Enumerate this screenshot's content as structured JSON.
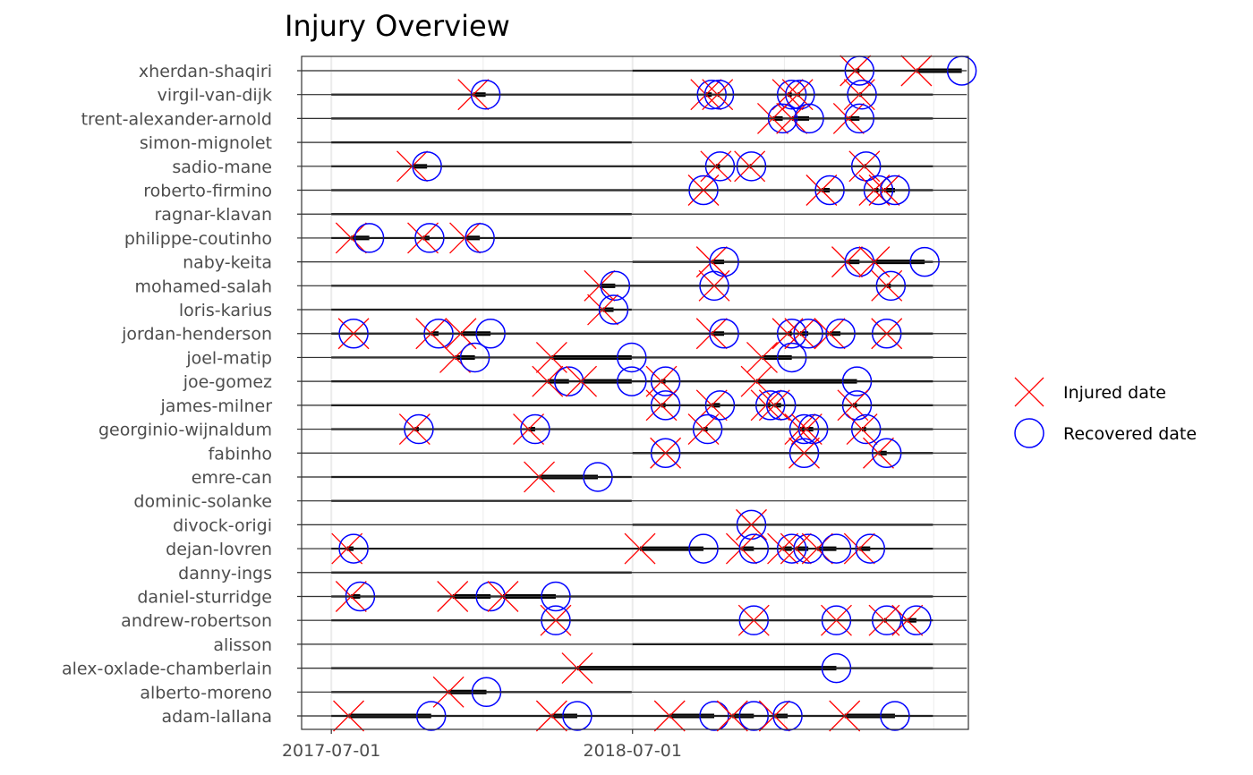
{
  "chart_data": {
    "type": "scatter",
    "title": "Injury Overview",
    "x_axis": {
      "type": "date",
      "range": [
        "2017-05-26",
        "2019-08-12"
      ],
      "ticks": [
        "2017-07-01",
        "2018-07-01"
      ],
      "minor_grid": [
        "2018-01-01",
        "2019-01-01",
        "2019-07-01"
      ]
    },
    "grid": true,
    "legend": {
      "placement": "right",
      "entries": [
        {
          "label": "Injured date",
          "shape": "cross",
          "color": "#ff0000"
        },
        {
          "label": "Recovered date",
          "shape": "circle",
          "color": "#0000ff"
        }
      ]
    },
    "players": [
      {
        "name": "xherdan-shaqiri",
        "span": [
          "2018-07-01",
          "2019-06-30"
        ],
        "injuries": [
          [
            "2019-03-28",
            "2019-04-02"
          ],
          [
            "2019-06-10",
            "2019-08-04"
          ]
        ]
      },
      {
        "name": "virgil-van-dijk",
        "span": [
          "2017-07-01",
          "2019-06-30"
        ],
        "injuries": [
          [
            "2017-12-20",
            "2018-01-04"
          ],
          [
            "2018-09-28",
            "2018-10-05"
          ],
          [
            "2018-10-12",
            "2018-10-14"
          ],
          [
            "2019-01-05",
            "2019-01-10"
          ],
          [
            "2019-01-17",
            "2019-01-20"
          ],
          [
            "2019-04-02",
            "2019-04-05"
          ]
        ]
      },
      {
        "name": "trent-alexander-arnold",
        "span": [
          "2017-07-01",
          "2019-06-30"
        ],
        "injuries": [
          [
            "2018-12-18",
            "2018-12-30"
          ],
          [
            "2019-01-10",
            "2019-01-31"
          ],
          [
            "2019-03-20",
            "2019-04-02"
          ]
        ]
      },
      {
        "name": "simon-mignolet",
        "span": [
          "2017-07-01",
          "2018-06-30"
        ],
        "injuries": []
      },
      {
        "name": "sadio-mane",
        "span": [
          "2017-07-01",
          "2019-06-30"
        ],
        "injuries": [
          [
            "2017-10-07",
            "2017-10-25"
          ],
          [
            "2018-10-10",
            "2018-10-15"
          ],
          [
            "2018-11-20",
            "2018-11-22"
          ],
          [
            "2019-04-08",
            "2019-04-10"
          ]
        ]
      },
      {
        "name": "roberto-firmino",
        "span": [
          "2017-07-01",
          "2019-06-30"
        ],
        "injuries": [
          [
            "2018-09-25",
            "2018-09-25"
          ],
          [
            "2019-02-15",
            "2019-02-25"
          ],
          [
            "2019-04-20",
            "2019-04-25"
          ],
          [
            "2019-05-02",
            "2019-05-15"
          ]
        ]
      },
      {
        "name": "ragnar-klavan",
        "span": [
          "2017-07-01",
          "2018-06-30"
        ],
        "injuries": []
      },
      {
        "name": "philippe-coutinho",
        "span": [
          "2017-07-01",
          "2018-06-30"
        ],
        "injuries": [
          [
            "2017-07-25",
            "2017-08-16"
          ],
          [
            "2017-10-20",
            "2017-10-28"
          ],
          [
            "2017-12-10",
            "2017-12-28"
          ]
        ]
      },
      {
        "name": "naby-keita",
        "span": [
          "2018-07-01",
          "2019-06-30"
        ],
        "injuries": [
          [
            "2018-10-05",
            "2018-10-20"
          ],
          [
            "2019-03-18",
            "2019-04-02"
          ],
          [
            "2019-04-20",
            "2019-06-20"
          ]
        ]
      },
      {
        "name": "mohamed-salah",
        "span": [
          "2017-07-01",
          "2019-06-30"
        ],
        "injuries": [
          [
            "2018-05-22",
            "2018-06-10"
          ],
          [
            "2018-10-08",
            "2018-10-08"
          ],
          [
            "2019-05-05",
            "2019-05-10"
          ]
        ]
      },
      {
        "name": "loris-karius",
        "span": [
          "2017-07-01",
          "2018-06-30"
        ],
        "injuries": [
          [
            "2018-05-26",
            "2018-06-08"
          ]
        ]
      },
      {
        "name": "jordan-henderson",
        "span": [
          "2017-07-01",
          "2019-06-30"
        ],
        "injuries": [
          [
            "2017-07-28",
            "2017-07-28"
          ],
          [
            "2017-10-30",
            "2017-11-08"
          ],
          [
            "2017-12-05",
            "2018-01-10"
          ],
          [
            "2018-10-05",
            "2018-10-20"
          ],
          [
            "2019-01-05",
            "2019-01-10"
          ],
          [
            "2019-01-20",
            "2019-01-30"
          ],
          [
            "2019-02-25",
            "2019-03-10"
          ],
          [
            "2019-05-05",
            "2019-05-05"
          ]
        ]
      },
      {
        "name": "joel-matip",
        "span": [
          "2017-07-01",
          "2019-06-30"
        ],
        "injuries": [
          [
            "2017-11-28",
            "2017-12-22"
          ],
          [
            "2018-03-25",
            "2018-06-30"
          ],
          [
            "2018-12-05",
            "2019-01-10"
          ]
        ]
      },
      {
        "name": "joe-gomez",
        "span": [
          "2017-07-01",
          "2019-06-30"
        ],
        "injuries": [
          [
            "2018-03-20",
            "2018-04-15"
          ],
          [
            "2018-04-30",
            "2018-06-30"
          ],
          [
            "2018-08-05",
            "2018-08-10"
          ],
          [
            "2018-11-28",
            "2019-03-30"
          ]
        ]
      },
      {
        "name": "james-milner",
        "span": [
          "2017-07-01",
          "2019-06-30"
        ],
        "injuries": [
          [
            "2018-08-05",
            "2018-08-10"
          ],
          [
            "2018-10-05",
            "2018-10-15"
          ],
          [
            "2018-12-10",
            "2018-12-15"
          ],
          [
            "2018-12-20",
            "2018-12-28"
          ],
          [
            "2019-03-25",
            "2019-03-30"
          ]
        ]
      },
      {
        "name": "georginio-wijnaldum",
        "span": [
          "2017-07-01",
          "2019-06-30"
        ],
        "injuries": [
          [
            "2017-10-10",
            "2017-10-15"
          ],
          [
            "2018-02-25",
            "2018-03-05"
          ],
          [
            "2018-09-25",
            "2018-09-30"
          ],
          [
            "2019-01-20",
            "2019-01-25"
          ],
          [
            "2019-01-28",
            "2019-02-05"
          ],
          [
            "2019-04-05",
            "2019-04-10"
          ]
        ]
      },
      {
        "name": "fabinho",
        "span": [
          "2018-07-01",
          "2019-06-30"
        ],
        "injuries": [
          [
            "2018-08-10",
            "2018-08-10"
          ],
          [
            "2019-01-25",
            "2019-01-25"
          ],
          [
            "2019-04-25",
            "2019-05-05"
          ]
        ]
      },
      {
        "name": "emre-can",
        "span": [
          "2017-07-01",
          "2018-06-30"
        ],
        "injuries": [
          [
            "2018-03-10",
            "2018-05-20"
          ]
        ]
      },
      {
        "name": "dominic-solanke",
        "span": [
          "2017-07-01",
          "2018-06-30"
        ],
        "injuries": []
      },
      {
        "name": "divock-origi",
        "span": [
          "2018-07-01",
          "2019-06-30"
        ],
        "injuries": [
          [
            "2018-11-22",
            "2018-11-22"
          ]
        ]
      },
      {
        "name": "dejan-lovren",
        "span": [
          "2017-07-01",
          "2019-06-30"
        ],
        "injuries": [
          [
            "2017-07-20",
            "2017-07-28"
          ],
          [
            "2018-07-10",
            "2018-09-25"
          ],
          [
            "2018-11-10",
            "2018-11-25"
          ],
          [
            "2018-12-30",
            "2019-01-10"
          ],
          [
            "2019-01-15",
            "2019-01-30"
          ],
          [
            "2019-02-10",
            "2019-03-05"
          ],
          [
            "2019-04-02",
            "2019-04-15"
          ]
        ]
      },
      {
        "name": "danny-ings",
        "span": [
          "2017-07-01",
          "2018-06-30"
        ],
        "injuries": []
      },
      {
        "name": "daniel-sturridge",
        "span": [
          "2017-07-01",
          "2019-06-30"
        ],
        "injuries": [
          [
            "2017-07-25",
            "2017-08-05"
          ],
          [
            "2017-11-25",
            "2018-01-10"
          ],
          [
            "2018-01-25",
            "2018-03-30"
          ]
        ]
      },
      {
        "name": "andrew-robertson",
        "span": [
          "2017-07-01",
          "2019-06-30"
        ],
        "injuries": [
          [
            "2018-03-30",
            "2018-03-30"
          ],
          [
            "2018-11-25",
            "2018-11-25"
          ],
          [
            "2019-03-05",
            "2019-03-05"
          ],
          [
            "2019-05-02",
            "2019-05-05"
          ],
          [
            "2019-05-30",
            "2019-06-10"
          ]
        ]
      },
      {
        "name": "alisson",
        "span": [
          "2018-07-01",
          "2019-06-30"
        ],
        "injuries": []
      },
      {
        "name": "alex-oxlade-chamberlain",
        "span": [
          "2017-07-01",
          "2019-06-30"
        ],
        "injuries": [
          [
            "2018-04-25",
            "2019-03-05"
          ]
        ]
      },
      {
        "name": "alberto-moreno",
        "span": [
          "2017-07-01",
          "2018-06-30"
        ],
        "injuries": [
          [
            "2017-11-20",
            "2018-01-05"
          ]
        ]
      },
      {
        "name": "adam-lallana",
        "span": [
          "2017-07-01",
          "2019-06-30"
        ],
        "injuries": [
          [
            "2017-07-22",
            "2017-10-30"
          ],
          [
            "2018-03-25",
            "2018-04-25"
          ],
          [
            "2018-08-15",
            "2018-10-08"
          ],
          [
            "2018-10-30",
            "2018-11-25"
          ],
          [
            "2018-12-20",
            "2019-01-05"
          ],
          [
            "2019-03-15",
            "2019-05-15"
          ]
        ]
      }
    ]
  }
}
